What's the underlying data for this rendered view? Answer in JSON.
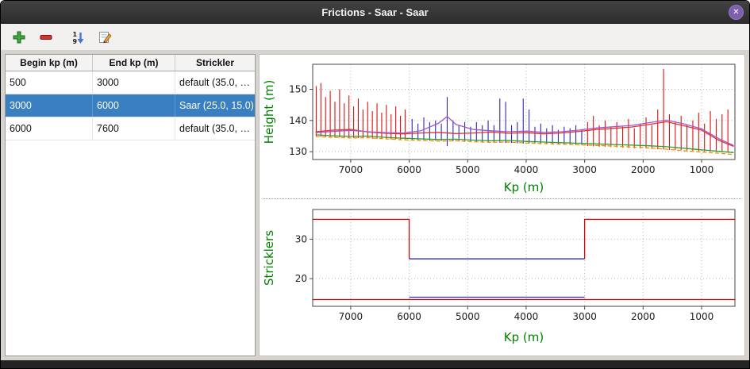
{
  "window": {
    "title": "Frictions - Saar - Saar",
    "close_glyph": "✕"
  },
  "toolbar": {
    "buttons": [
      {
        "name": "add-friction-zone",
        "icon": "plus-icon"
      },
      {
        "name": "remove-friction-zone",
        "icon": "minus-icon"
      },
      {
        "name": "sort-1-9",
        "icon": "sort-descending-icon"
      },
      {
        "name": "edit-friction",
        "icon": "edit-pencil-icon"
      }
    ]
  },
  "table": {
    "headers": [
      "Begin kp (m)",
      "End kp (m)",
      "Strickler"
    ],
    "rows": [
      [
        "500",
        "3000",
        "default (35.0, …"
      ],
      [
        "3000",
        "6000",
        "Saar (25.0, 15.0)"
      ],
      [
        "6000",
        "7600",
        "default (35.0, …"
      ]
    ],
    "selected_row": 1
  },
  "colors": {
    "selection": "#3a7fc1",
    "axis_label": "#008000",
    "red": "#dd1111",
    "blue": "#2a2ab8",
    "grid": "#b5b5b5"
  },
  "chart_data": [
    {
      "type": "line",
      "title": "",
      "xlabel": "Kp (m)",
      "ylabel": "Height (m)",
      "x_reversed": true,
      "xlim": [
        7650,
        430
      ],
      "ylim": [
        127.5,
        158
      ],
      "x_ticks": [
        7000,
        6000,
        5000,
        4000,
        3000,
        2000,
        1000
      ],
      "y_ticks": [
        130,
        140,
        150
      ],
      "grid": true,
      "legend": false,
      "spike_groups": [
        {
          "name": "cross-sections-default-upstream",
          "color": "#dd1111",
          "spikes": [
            [
              7590,
              134.8,
              151.0
            ],
            [
              7510,
              134.8,
              152.0
            ],
            [
              7430,
              134.7,
              147.5
            ],
            [
              7350,
              134.7,
              149.5
            ],
            [
              7270,
              134.6,
              146.0
            ],
            [
              7190,
              134.6,
              150.0
            ],
            [
              7110,
              134.5,
              145.5
            ],
            [
              7030,
              134.5,
              148.0
            ],
            [
              6950,
              134.4,
              144.5
            ],
            [
              6870,
              134.4,
              147.0
            ],
            [
              6790,
              134.3,
              143.5
            ],
            [
              6710,
              134.3,
              146.0
            ],
            [
              6630,
              134.2,
              143.0
            ],
            [
              6550,
              134.2,
              145.5
            ],
            [
              6470,
              134.1,
              142.5
            ],
            [
              6390,
              134.1,
              145.0
            ],
            [
              6310,
              134.0,
              142.0
            ],
            [
              6230,
              134.0,
              144.5
            ],
            [
              6150,
              134.0,
              141.5
            ],
            [
              6070,
              134.0,
              143.5
            ]
          ]
        },
        {
          "name": "cross-sections-saar-selected",
          "color": "#2a2ab8",
          "spikes": [
            [
              5950,
              133.8,
              140.5
            ],
            [
              5850,
              133.7,
              139.0
            ],
            [
              5750,
              133.7,
              141.0
            ],
            [
              5650,
              133.6,
              139.5
            ],
            [
              5550,
              133.6,
              140.0
            ],
            [
              5450,
              133.5,
              139.0
            ],
            [
              5350,
              131.8,
              147.5
            ],
            [
              5250,
              133.4,
              140.0
            ],
            [
              5150,
              133.3,
              138.5
            ],
            [
              5050,
              133.3,
              139.5
            ],
            [
              4950,
              133.2,
              138.0
            ],
            [
              4850,
              133.1,
              139.5
            ],
            [
              4750,
              133.1,
              138.5
            ],
            [
              4650,
              133.0,
              140.0
            ],
            [
              4550,
              132.9,
              138.5
            ],
            [
              4450,
              132.9,
              147.0
            ],
            [
              4350,
              132.8,
              146.0
            ],
            [
              4250,
              132.8,
              138.5
            ],
            [
              4150,
              132.7,
              139.5
            ],
            [
              4050,
              132.6,
              147.0
            ],
            [
              3950,
              132.6,
              143.5
            ],
            [
              3850,
              132.5,
              138.0
            ],
            [
              3750,
              132.4,
              139.0
            ],
            [
              3650,
              132.4,
              137.5
            ],
            [
              3550,
              132.3,
              138.5
            ],
            [
              3450,
              132.3,
              137.0
            ],
            [
              3350,
              132.2,
              138.0
            ],
            [
              3250,
              132.2,
              137.5
            ],
            [
              3150,
              132.2,
              138.5
            ],
            [
              3050,
              132.2,
              137.0
            ]
          ]
        },
        {
          "name": "cross-sections-default-downstream",
          "color": "#dd1111",
          "spikes": [
            [
              2950,
              131.8,
              139.5
            ],
            [
              2850,
              131.7,
              141.5
            ],
            [
              2750,
              131.6,
              138.5
            ],
            [
              2650,
              131.6,
              140.0
            ],
            [
              2550,
              131.5,
              138.0
            ],
            [
              2450,
              131.4,
              139.5
            ],
            [
              2350,
              131.3,
              138.0
            ],
            [
              2250,
              131.2,
              140.5
            ],
            [
              2150,
              131.1,
              137.5
            ],
            [
              2050,
              131.1,
              139.0
            ],
            [
              1950,
              131.0,
              141.0
            ],
            [
              1850,
              130.9,
              138.5
            ],
            [
              1750,
              130.8,
              143.5
            ],
            [
              1650,
              130.7,
              156.5
            ],
            [
              1550,
              130.6,
              142.0
            ],
            [
              1450,
              130.6,
              139.5
            ],
            [
              1350,
              130.5,
              141.5
            ],
            [
              1250,
              130.4,
              138.5
            ],
            [
              1150,
              130.3,
              140.0
            ],
            [
              1050,
              130.2,
              142.5
            ],
            [
              950,
              130.1,
              139.0
            ],
            [
              850,
              130.1,
              143.0
            ],
            [
              750,
              130.0,
              140.5
            ],
            [
              650,
              129.9,
              142.0
            ],
            [
              550,
              129.8,
              143.5
            ]
          ]
        }
      ],
      "series": [
        {
          "name": "profile-red",
          "color": "#e03131",
          "dash": "none",
          "points": [
            [
              7600,
              136.4
            ],
            [
              7300,
              136.9
            ],
            [
              7000,
              137.1
            ],
            [
              6700,
              136.3
            ],
            [
              6400,
              135.9
            ],
            [
              6100,
              135.7
            ],
            [
              5800,
              136.0
            ],
            [
              5500,
              136.2
            ],
            [
              5200,
              135.8
            ],
            [
              4900,
              136.0
            ],
            [
              4600,
              136.3
            ],
            [
              4300,
              135.9
            ],
            [
              4000,
              136.1
            ],
            [
              3700,
              135.7
            ],
            [
              3400,
              136.0
            ],
            [
              3100,
              136.5
            ],
            [
              2800,
              137.1
            ],
            [
              2500,
              137.5
            ],
            [
              2200,
              137.9
            ],
            [
              1900,
              138.7
            ],
            [
              1600,
              139.6
            ],
            [
              1300,
              138.3
            ],
            [
              1000,
              136.9
            ],
            [
              700,
              133.6
            ],
            [
              450,
              131.7
            ]
          ]
        },
        {
          "name": "profile-violet",
          "color": "#a257c9",
          "dash": "none",
          "points": [
            [
              7600,
              136.1
            ],
            [
              7300,
              136.5
            ],
            [
              7000,
              136.8
            ],
            [
              6700,
              136.4
            ],
            [
              6400,
              136.1
            ],
            [
              6100,
              136.0
            ],
            [
              5800,
              136.7
            ],
            [
              5500,
              139.1
            ],
            [
              5350,
              141.3
            ],
            [
              5200,
              138.7
            ],
            [
              4900,
              137.1
            ],
            [
              4600,
              136.7
            ],
            [
              4300,
              136.4
            ],
            [
              4000,
              136.6
            ],
            [
              3700,
              136.2
            ],
            [
              3400,
              136.4
            ],
            [
              3100,
              136.9
            ],
            [
              2800,
              137.6
            ],
            [
              2500,
              138.0
            ],
            [
              2200,
              138.4
            ],
            [
              1900,
              139.3
            ],
            [
              1600,
              140.1
            ],
            [
              1300,
              138.9
            ],
            [
              1000,
              137.3
            ],
            [
              700,
              134.1
            ],
            [
              450,
              132.0
            ]
          ]
        },
        {
          "name": "profile-green",
          "color": "#2ca02c",
          "dash": "none",
          "points": [
            [
              7600,
              135.4
            ],
            [
              7300,
              135.1
            ],
            [
              7000,
              134.9
            ],
            [
              6700,
              135.0
            ],
            [
              6400,
              134.6
            ],
            [
              6100,
              134.3
            ],
            [
              5800,
              134.1
            ],
            [
              5500,
              133.9
            ],
            [
              5200,
              134.0
            ],
            [
              4900,
              133.7
            ],
            [
              4600,
              133.5
            ],
            [
              4300,
              133.6
            ],
            [
              4000,
              133.3
            ],
            [
              3700,
              133.1
            ],
            [
              3400,
              132.9
            ],
            [
              3100,
              132.7
            ],
            [
              2800,
              132.5
            ],
            [
              2500,
              132.3
            ],
            [
              2200,
              132.1
            ],
            [
              1900,
              131.9
            ],
            [
              1600,
              131.6
            ],
            [
              1300,
              131.1
            ],
            [
              1000,
              130.6
            ],
            [
              700,
              130.1
            ],
            [
              450,
              129.7
            ]
          ]
        },
        {
          "name": "profile-orange-dashed",
          "color": "#ff8c00",
          "dash": "5 3",
          "points": [
            [
              7600,
              134.9
            ],
            [
              7300,
              134.6
            ],
            [
              7000,
              134.4
            ],
            [
              6700,
              134.5
            ],
            [
              6400,
              134.1
            ],
            [
              6100,
              133.8
            ],
            [
              5800,
              133.6
            ],
            [
              5500,
              133.4
            ],
            [
              5200,
              133.5
            ],
            [
              4900,
              133.2
            ],
            [
              4600,
              133.0
            ],
            [
              4300,
              133.1
            ],
            [
              4000,
              132.8
            ],
            [
              3700,
              132.6
            ],
            [
              3400,
              132.4
            ],
            [
              3100,
              132.2
            ],
            [
              2800,
              132.0
            ],
            [
              2500,
              131.8
            ],
            [
              2200,
              131.5
            ],
            [
              1900,
              131.2
            ],
            [
              1600,
              130.8
            ],
            [
              1300,
              130.3
            ],
            [
              1000,
              129.9
            ],
            [
              700,
              129.5
            ],
            [
              450,
              129.1
            ]
          ]
        }
      ]
    },
    {
      "type": "line",
      "title": "",
      "xlabel": "Kp (m)",
      "ylabel": "Stricklers",
      "x_reversed": true,
      "xlim": [
        7650,
        430
      ],
      "ylim": [
        13,
        37.5
      ],
      "x_ticks": [
        7000,
        6000,
        5000,
        4000,
        3000,
        2000,
        1000
      ],
      "y_ticks": [
        20,
        30
      ],
      "grid": true,
      "legend": false,
      "series": [
        {
          "name": "main-channel-default-upstream",
          "color": "#e00000",
          "dash": "none",
          "points": [
            [
              7650,
              35
            ],
            [
              6000,
              35
            ],
            [
              6000,
              25
            ]
          ]
        },
        {
          "name": "main-channel-saar-selected",
          "color": "#2a2ab8",
          "dash": "none",
          "points": [
            [
              6000,
              25
            ],
            [
              3000,
              25
            ]
          ]
        },
        {
          "name": "main-channel-default-downstream",
          "color": "#e00000",
          "dash": "none",
          "points": [
            [
              3000,
              25
            ],
            [
              3000,
              35
            ],
            [
              430,
              35
            ]
          ]
        },
        {
          "name": "floodplain-default",
          "color": "#e00000",
          "dash": "none",
          "points": [
            [
              7650,
              14.7
            ],
            [
              430,
              14.7
            ]
          ]
        },
        {
          "name": "floodplain-saar-selected",
          "color": "#2a2ab8",
          "dash": "none",
          "points": [
            [
              6000,
              15.3
            ],
            [
              3000,
              15.3
            ]
          ]
        }
      ]
    }
  ]
}
